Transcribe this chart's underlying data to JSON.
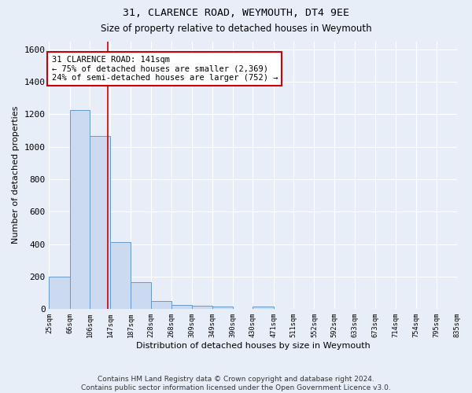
{
  "title1": "31, CLARENCE ROAD, WEYMOUTH, DT4 9EE",
  "title2": "Size of property relative to detached houses in Weymouth",
  "xlabel": "Distribution of detached houses by size in Weymouth",
  "ylabel": "Number of detached properties",
  "bar_color": "#ccdaf0",
  "bar_edge_color": "#6699cc",
  "bg_color": "#e8eef8",
  "grid_color": "#ffffff",
  "vline_x": 141,
  "vline_color": "#cc0000",
  "annotation_text": "31 CLARENCE ROAD: 141sqm\n← 75% of detached houses are smaller (2,369)\n24% of semi-detached houses are larger (752) →",
  "annotation_box_color": "white",
  "annotation_box_edge": "#cc0000",
  "bin_edges": [
    25,
    66,
    106,
    147,
    187,
    228,
    268,
    309,
    349,
    390,
    430,
    471,
    511,
    552,
    592,
    633,
    673,
    714,
    754,
    795,
    835
  ],
  "bin_values": [
    200,
    1225,
    1065,
    410,
    165,
    47,
    25,
    18,
    15,
    0,
    15,
    0,
    0,
    0,
    0,
    0,
    0,
    0,
    0,
    0
  ],
  "ylim": [
    0,
    1650
  ],
  "xlim": [
    25,
    835
  ],
  "yticks": [
    0,
    200,
    400,
    600,
    800,
    1000,
    1200,
    1400,
    1600
  ],
  "footer": "Contains HM Land Registry data © Crown copyright and database right 2024.\nContains public sector information licensed under the Open Government Licence v3.0."
}
